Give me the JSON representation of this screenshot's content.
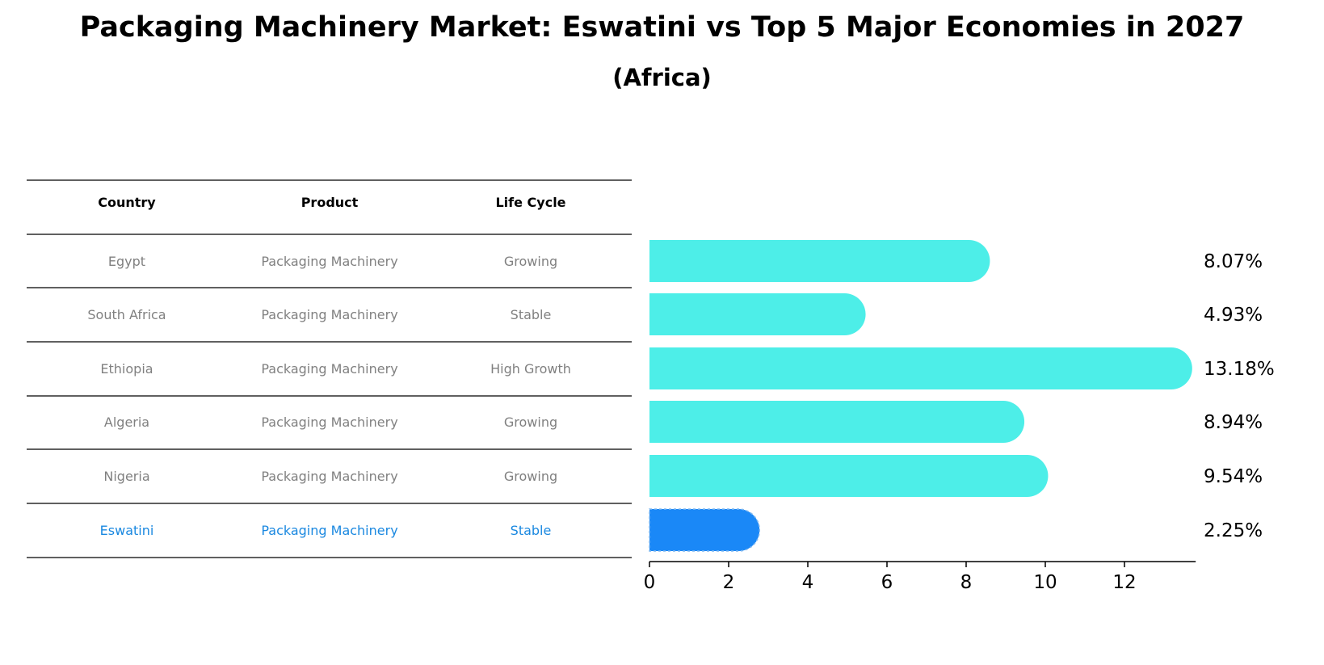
{
  "title": "Packaging Machinery Market: Eswatini vs Top 5 Major Economies in 2027",
  "subtitle": "(Africa)",
  "colors": {
    "bar": "#4deee8",
    "highlight": "#1a88f7",
    "highlight_text": "#1a88e0",
    "cell_text": "#808080"
  },
  "table": {
    "headers": [
      "Country",
      "Product",
      "Life Cycle"
    ],
    "rows": [
      {
        "country": "Egypt",
        "product": "Packaging Machinery",
        "life_cycle": "Growing"
      },
      {
        "country": "South Africa",
        "product": "Packaging Machinery",
        "life_cycle": "Stable"
      },
      {
        "country": "Ethiopia",
        "product": "Packaging Machinery",
        "life_cycle": "High Growth"
      },
      {
        "country": "Algeria",
        "product": "Packaging Machinery",
        "life_cycle": "Growing"
      },
      {
        "country": "Nigeria",
        "product": "Packaging Machinery",
        "life_cycle": "Growing"
      },
      {
        "country": "Eswatini",
        "product": "Packaging Machinery",
        "life_cycle": "Stable"
      }
    ]
  },
  "chart_data": {
    "type": "bar",
    "orientation": "horizontal",
    "categories": [
      "Egypt",
      "South Africa",
      "Ethiopia",
      "Algeria",
      "Nigeria",
      "Eswatini"
    ],
    "values": [
      8.07,
      4.93,
      13.18,
      8.94,
      9.54,
      2.25
    ],
    "value_labels": [
      "8.07%",
      "4.93%",
      "13.18%",
      "8.94%",
      "9.54%",
      "2.25%"
    ],
    "highlight": "Eswatini",
    "xlim": [
      0,
      13.8
    ],
    "xticks": [
      0,
      2,
      4,
      6,
      8,
      10,
      12
    ],
    "grid": false
  }
}
